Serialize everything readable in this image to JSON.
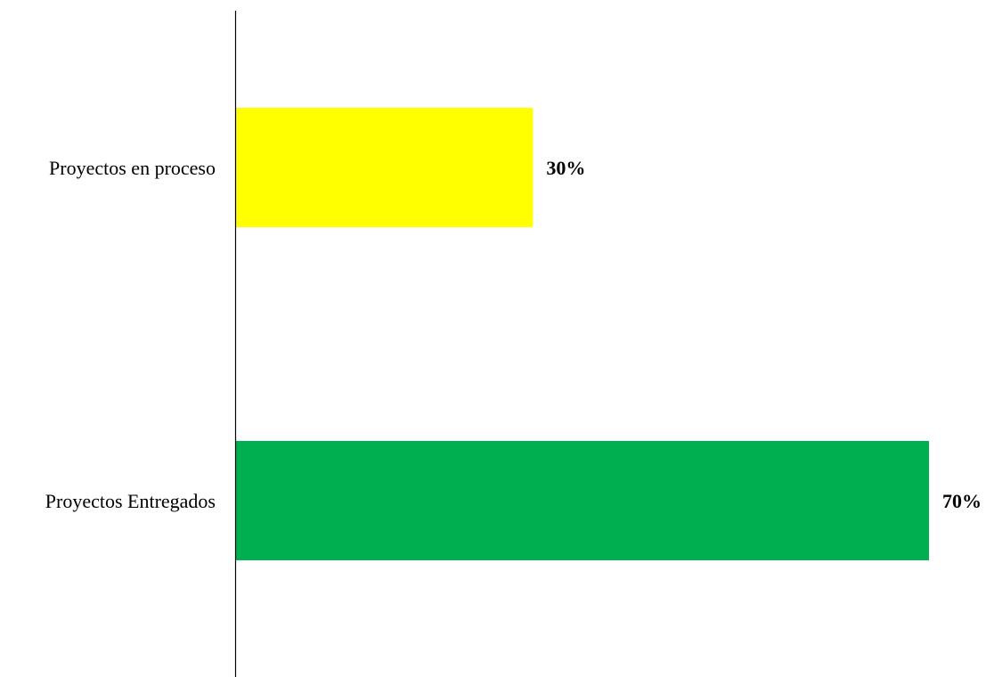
{
  "chart_data": {
    "type": "bar",
    "orientation": "horizontal",
    "title": "",
    "xlabel": "",
    "ylabel": "",
    "grid": false,
    "legend": "none",
    "categories": [
      "Proyectos en proceso",
      "Proyectos Entregados"
    ],
    "values": [
      30,
      70
    ],
    "value_labels": [
      "30%",
      "70%"
    ],
    "colors": [
      "#FFFF00",
      "#00B050"
    ],
    "xlim": [
      0,
      70
    ]
  }
}
